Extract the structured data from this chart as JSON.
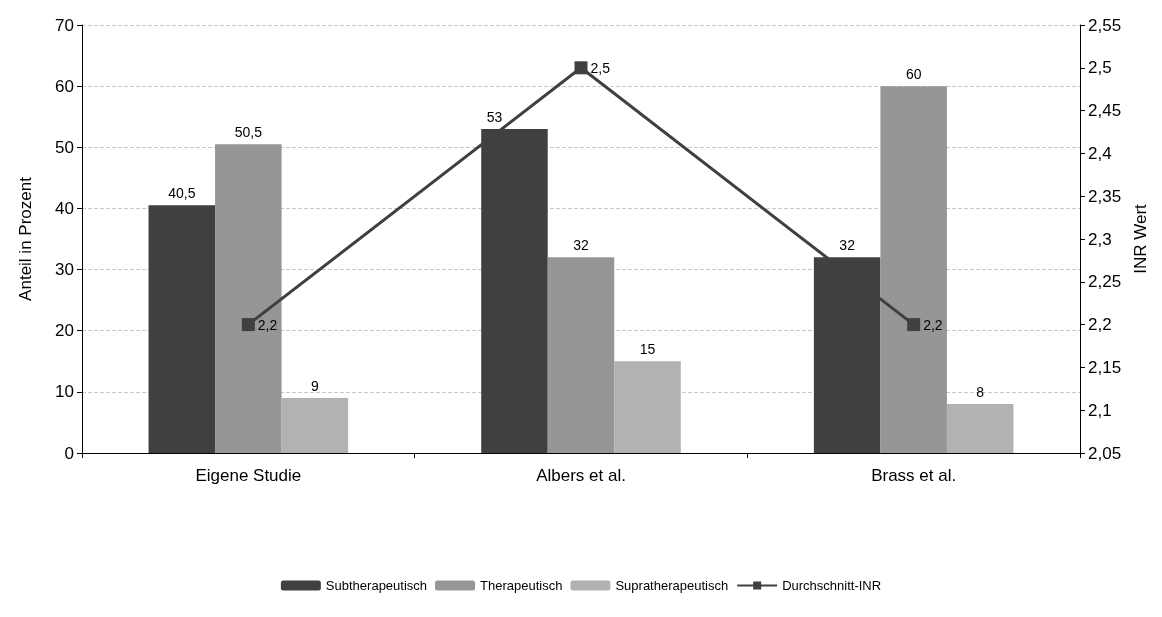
{
  "chart_data": {
    "type": "bar",
    "categories": [
      "Eigene Studie",
      "Albers et al.",
      "Brass et al."
    ],
    "ylabel": "Anteil in Prozent",
    "y2label": "INR Wert",
    "ylim": [
      0,
      70
    ],
    "yticks": [
      0,
      10,
      20,
      30,
      40,
      50,
      60,
      70
    ],
    "y2lim": [
      2.05,
      2.55
    ],
    "y2ticks": [
      {
        "value": 2.05,
        "label": "2,05"
      },
      {
        "value": 2.1,
        "label": "2,1"
      },
      {
        "value": 2.15,
        "label": "2,15"
      },
      {
        "value": 2.2,
        "label": "2,2"
      },
      {
        "value": 2.25,
        "label": "2,25"
      },
      {
        "value": 2.3,
        "label": "2,3"
      },
      {
        "value": 2.35,
        "label": "2,35"
      },
      {
        "value": 2.4,
        "label": "2,4"
      },
      {
        "value": 2.45,
        "label": "2,45"
      },
      {
        "value": 2.5,
        "label": "2,5"
      },
      {
        "value": 2.55,
        "label": "2,55"
      }
    ],
    "grid": "y",
    "legend": "bottom",
    "marker": "square",
    "series": [
      {
        "name": "Subtherapeutisch",
        "color": "#404040",
        "values": [
          40.5,
          53,
          32
        ],
        "value_labels": [
          "40,5",
          "53",
          "32"
        ]
      },
      {
        "name": "Therapeutisch",
        "color": "#969696",
        "values": [
          50.5,
          32,
          60
        ],
        "value_labels": [
          "50,5",
          "32",
          "60"
        ]
      },
      {
        "name": "Supratherapeutisch",
        "color": "#b2b2b2",
        "values": [
          9,
          15,
          8
        ],
        "value_labels": [
          "9",
          "15",
          "8"
        ]
      },
      {
        "name": "Durchschnitt-INR",
        "type": "line",
        "axis": "y2",
        "color": "#404040",
        "values": [
          2.2,
          2.5,
          2.2
        ],
        "value_labels": [
          "2,2",
          "2,5",
          "2,2"
        ]
      }
    ]
  }
}
